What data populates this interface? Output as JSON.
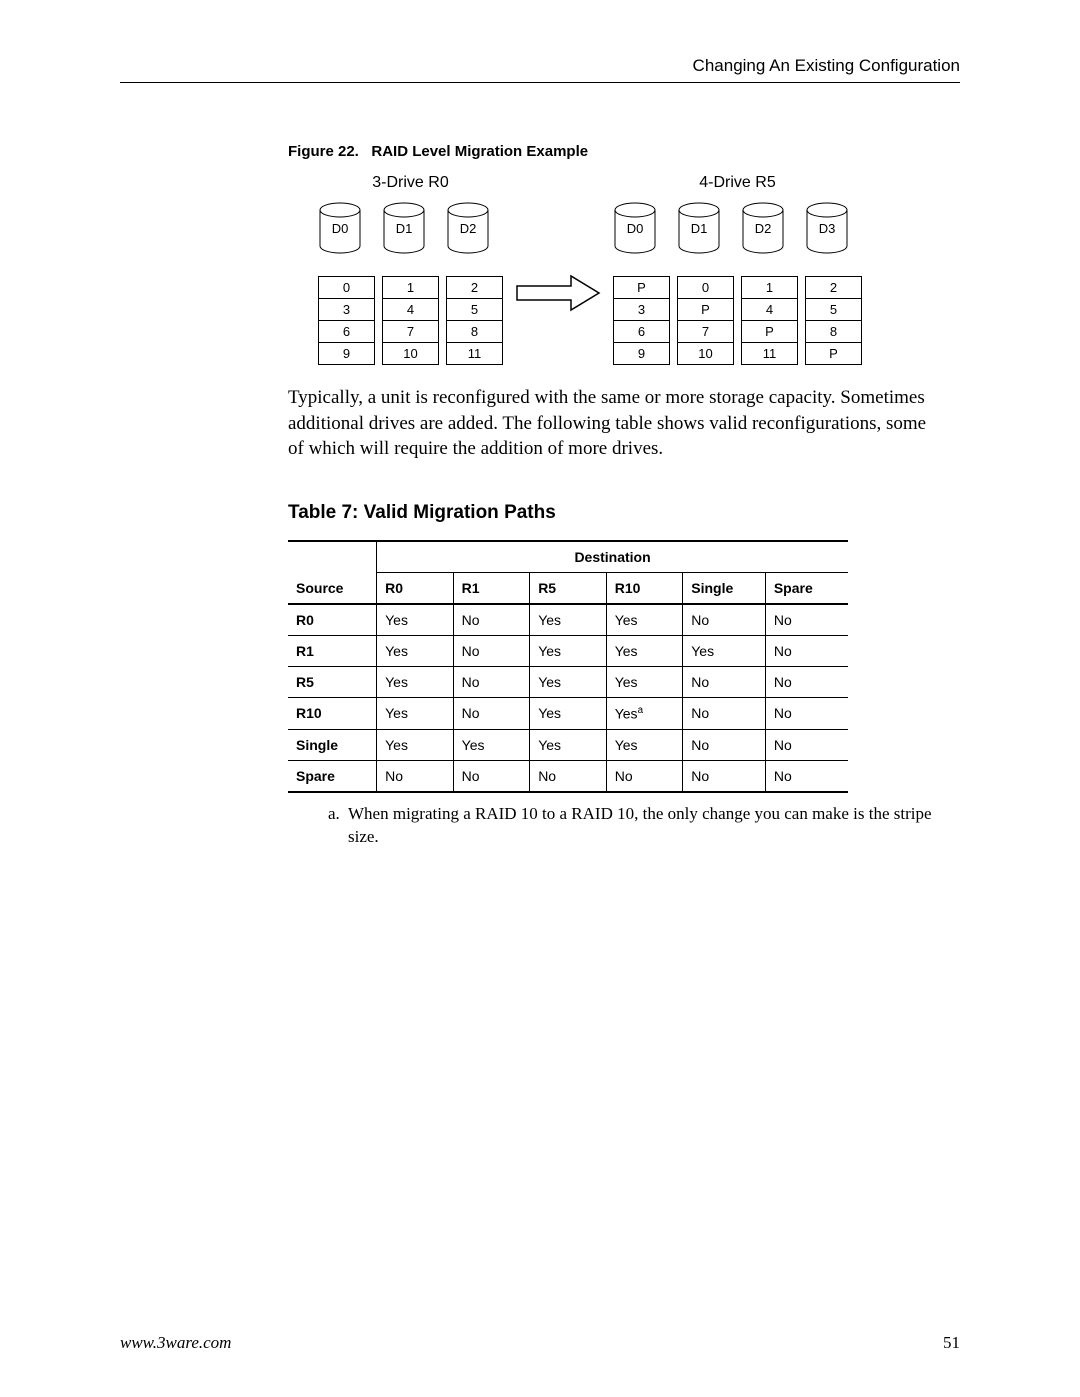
{
  "header": {
    "title": "Changing An Existing Configuration"
  },
  "figure": {
    "caption_prefix": "Figure 22.",
    "caption_title": "RAID Level Migration Example",
    "left": {
      "title": "3-Drive R0",
      "drives": [
        "D0",
        "D1",
        "D2"
      ],
      "rows": [
        [
          "0",
          "1",
          "2"
        ],
        [
          "3",
          "4",
          "5"
        ],
        [
          "6",
          "7",
          "8"
        ],
        [
          "9",
          "10",
          "11"
        ]
      ]
    },
    "right": {
      "title": "4-Drive R5",
      "drives": [
        "D0",
        "D1",
        "D2",
        "D3"
      ],
      "rows": [
        [
          "P",
          "0",
          "1",
          "2"
        ],
        [
          "3",
          "P",
          "4",
          "5"
        ],
        [
          "6",
          "7",
          "P",
          "8"
        ],
        [
          "9",
          "10",
          "11",
          "P"
        ]
      ]
    }
  },
  "paragraph": "Typically, a unit is reconfigured with the same or more storage capacity. Sometimes additional drives are added. The following table shows valid reconfigurations, some of which will require the addition of more drives.",
  "table": {
    "title": "Table 7: Valid Migration Paths",
    "dest_label": "Destination",
    "source_label": "Source",
    "columns": [
      "R0",
      "R1",
      "R5",
      "R10",
      "Single",
      "Spare"
    ],
    "rows": [
      {
        "label": "R0",
        "cells": [
          "Yes",
          "No",
          "Yes",
          "Yes",
          "No",
          "No"
        ]
      },
      {
        "label": "R1",
        "cells": [
          "Yes",
          "No",
          "Yes",
          "Yes",
          "Yes",
          "No"
        ]
      },
      {
        "label": "R5",
        "cells": [
          "Yes",
          "No",
          "Yes",
          "Yes",
          "No",
          "No"
        ]
      },
      {
        "label": "R10",
        "cells": [
          "Yes",
          "No",
          "Yes",
          "Yes",
          "No",
          "No"
        ],
        "sup_index": 3,
        "sup": "a"
      },
      {
        "label": "Single",
        "cells": [
          "Yes",
          "Yes",
          "Yes",
          "Yes",
          "No",
          "No"
        ]
      },
      {
        "label": "Spare",
        "cells": [
          "No",
          "No",
          "No",
          "No",
          "No",
          "No"
        ]
      }
    ],
    "footnote_marker": "a.",
    "footnote": "When migrating a RAID 10 to a RAID 10, the only change you can make is the stripe size."
  },
  "footer": {
    "url": "www.3ware.com",
    "page": "51"
  },
  "style": {
    "drive_stroke": "#000000",
    "table_col_widths": [
      88,
      76,
      76,
      76,
      76,
      82,
      82
    ]
  }
}
